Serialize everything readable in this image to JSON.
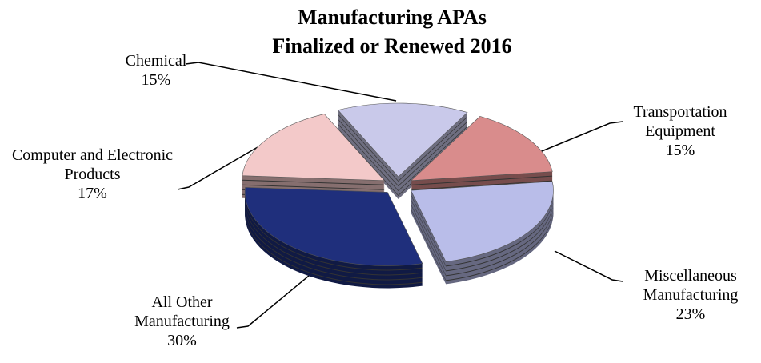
{
  "chart_data": {
    "type": "pie",
    "title": [
      "Manufacturing APAs",
      "Finalized or Renewed 2016"
    ],
    "categories": [
      "Chemical",
      "Transportation Equipment",
      "Miscellaneous Manufacturing",
      "All Other Manufacturing",
      "Computer and Electronic Products"
    ],
    "values": [
      15,
      15,
      23,
      30,
      17
    ],
    "value_labels": [
      "15%",
      "15%",
      "23%",
      "30%",
      "17%"
    ],
    "colors": [
      "#c9c9ea",
      "#d98c8c",
      "#b9bde9",
      "#1f2f7c",
      "#f3c9c9"
    ]
  }
}
